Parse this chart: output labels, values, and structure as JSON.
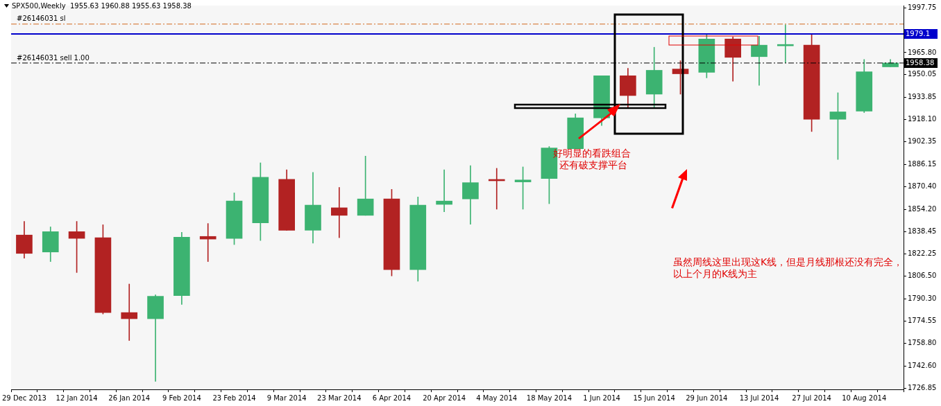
{
  "chart_data": {
    "type": "candlestick",
    "title": "SPX500,Weekly  1955.63 1960.88 1955.63 1958.38",
    "categories": [
      "29 Dec 2013",
      null,
      "12 Jan 2014",
      null,
      "26 Jan 2014",
      null,
      "9 Feb 2014",
      null,
      "23 Feb 2014",
      null,
      "9 Mar 2014",
      null,
      "23 Mar 2014",
      null,
      "6 Apr 2014",
      null,
      "20 Apr 2014",
      null,
      "4 May 2014",
      null,
      "18 May 2014",
      null,
      "1 Jun 2014",
      null,
      "15 Jun 2014",
      null,
      "29 Jun 2014",
      null,
      "13 Jul 2014",
      null,
      "27 Jul 2014",
      null,
      "10 Aug 2014",
      null
    ],
    "ohlc": [
      [
        1835.9,
        1845.6,
        1819.4,
        1822.8
      ],
      [
        1823.8,
        1841.7,
        1817.0,
        1838.3
      ],
      [
        1838.3,
        1845.6,
        1809.2,
        1833.5
      ],
      [
        1834.0,
        1843.2,
        1779.7,
        1780.7
      ],
      [
        1780.7,
        1801.0,
        1760.8,
        1776.3
      ],
      [
        1776.3,
        1793.3,
        1731.7,
        1792.3
      ],
      [
        1792.8,
        1837.8,
        1786.5,
        1834.4
      ],
      [
        1834.9,
        1844.1,
        1817.0,
        1833.0
      ],
      [
        1833.5,
        1865.9,
        1829.1,
        1860.1
      ],
      [
        1844.6,
        1887.3,
        1832.0,
        1877.1
      ],
      [
        1875.6,
        1882.4,
        1839.3,
        1839.3
      ],
      [
        1839.3,
        1880.5,
        1830.1,
        1857.2
      ],
      [
        1855.3,
        1869.8,
        1834.0,
        1849.9
      ],
      [
        1849.9,
        1892.1,
        1849.9,
        1861.6
      ],
      [
        1861.6,
        1868.4,
        1806.8,
        1811.2
      ],
      [
        1811.2,
        1863.0,
        1803.0,
        1857.2
      ],
      [
        1857.7,
        1882.4,
        1852.4,
        1860.1
      ],
      [
        1861.6,
        1885.3,
        1843.6,
        1873.2
      ],
      [
        1874.9,
        1883.4,
        1854.3,
        1874.5
      ],
      [
        1873.7,
        1884.4,
        1854.3,
        1875.1
      ],
      [
        1876.1,
        1898.9,
        1858.2,
        1897.9
      ],
      [
        1897.4,
        1922.2,
        1897.4,
        1919.3
      ],
      [
        1919.3,
        1949.3,
        1913.9,
        1949.3
      ],
      [
        1949.3,
        1954.6,
        1926.0,
        1935.2
      ],
      [
        1936.2,
        1969.6,
        1926.0,
        1953.2
      ],
      [
        1954.1,
        1960.0,
        1936.2,
        1950.7
      ],
      [
        1951.7,
        1978.9,
        1947.8,
        1975.5
      ],
      [
        1975.5,
        1976.9,
        1945.4,
        1962.4
      ],
      [
        1962.9,
        1977.4,
        1942.5,
        1971.1
      ],
      [
        1970.6,
        1985.6,
        1958.5,
        1971.1
      ],
      [
        1971.1,
        1978.9,
        1909.6,
        1918.3
      ],
      [
        1918.3,
        1937.2,
        1889.7,
        1923.6
      ],
      [
        1924.1,
        1960.9,
        1923.1,
        1952.2
      ],
      [
        1955.63,
        1960.88,
        1955.63,
        1958.38
      ]
    ],
    "colors": [
      "#b22222",
      "#3cb371",
      "#b22222",
      "#b22222",
      "#b22222",
      "#3cb371",
      "#3cb371",
      "#b22222",
      "#3cb371",
      "#3cb371",
      "#b22222",
      "#3cb371",
      "#b22222",
      "#3cb371",
      "#b22222",
      "#3cb371",
      "#3cb371",
      "#3cb371",
      "#b22222",
      "#3cb371",
      "#3cb371",
      "#3cb371",
      "#3cb371",
      "#b22222",
      "#3cb371",
      "#b22222",
      "#3cb371",
      "#b22222",
      "#3cb371",
      "#3cb371",
      "#b22222",
      "#3cb371",
      "#3cb371",
      "#3cb371"
    ],
    "ylim": [
      1726,
      1999.3
    ],
    "yticks": [
      {
        "value": 1997.75,
        "label": "1997.75"
      },
      {
        "value": 1982,
        "label": null
      },
      {
        "value": 1965.8,
        "label": "1965.80"
      },
      {
        "value": 1950.05,
        "label": "1950.05"
      },
      {
        "value": 1933.85,
        "label": "1933.85"
      },
      {
        "value": 1918.1,
        "label": "1918.10"
      },
      {
        "value": 1902.35,
        "label": "1902.35"
      },
      {
        "value": 1886.15,
        "label": "1886.15"
      },
      {
        "value": 1870.4,
        "label": "1870.40"
      },
      {
        "value": 1854.2,
        "label": "1854.20"
      },
      {
        "value": 1838.45,
        "label": "1838.45"
      },
      {
        "value": 1822.25,
        "label": "1822.25"
      },
      {
        "value": 1806.5,
        "label": "1806.50"
      },
      {
        "value": 1790.3,
        "label": "1790.30"
      },
      {
        "value": 1774.55,
        "label": "1774.55"
      },
      {
        "value": 1758.8,
        "label": "1758.80"
      },
      {
        "value": 1742.6,
        "label": "1742.60"
      },
      {
        "value": 1726.85,
        "label": "1726.85"
      }
    ],
    "ref_lines": [
      {
        "axis": "y",
        "value": 1986.1,
        "label": "#26146031 sl",
        "color": "#d2691e",
        "line_style": "dashed"
      },
      {
        "axis": "y",
        "value": 1979.1,
        "label": "1979.1",
        "color": "#0000cc",
        "line_style": "solid"
      },
      {
        "axis": "y",
        "value": 1958.38,
        "label": "#26146031 sell 1.00",
        "color": "#000000",
        "line_style": "dashed"
      }
    ],
    "annotations": [
      "好明显的看跌组合",
      "还有破支撑平台",
      "虽然周线这里出现这K线，但是月线那根还没有完全，",
      "以上个月的K线为主",
      "1958.38"
    ],
    "grid": false,
    "legend": false
  }
}
